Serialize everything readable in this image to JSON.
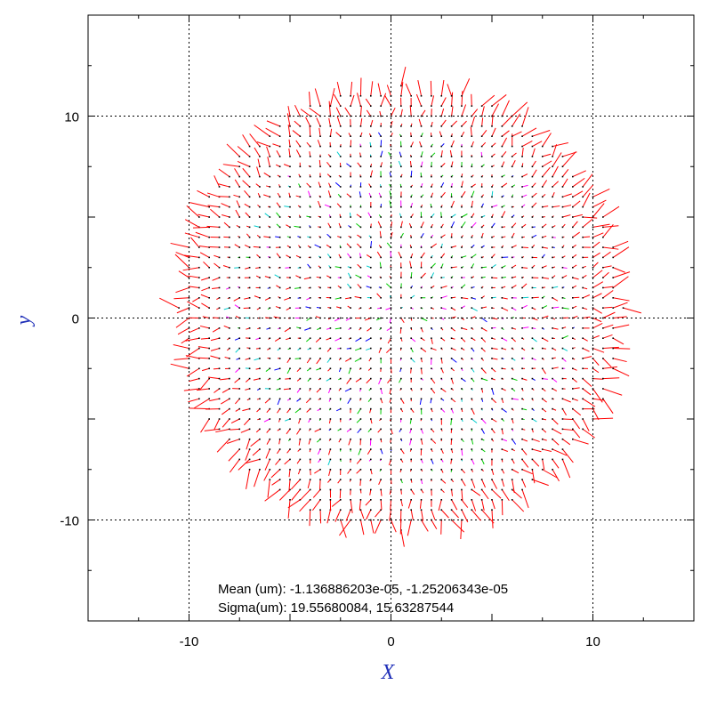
{
  "chart_data": {
    "type": "vector-field",
    "xlabel": "X",
    "ylabel": "y",
    "xlim": [
      -15,
      15
    ],
    "ylim": [
      -15,
      15
    ],
    "grid": true,
    "grid_values": [
      -10,
      0,
      10
    ],
    "x_ticks": [
      {
        "value": -10,
        "label": "-10"
      },
      {
        "value": 0,
        "label": "0"
      },
      {
        "value": 10,
        "label": "10"
      }
    ],
    "y_ticks": [
      {
        "value": 10,
        "label": "10"
      },
      {
        "value": 0,
        "label": "0"
      },
      {
        "value": -10,
        "label": "-10"
      }
    ],
    "minor_ticks": [
      -15,
      -12.5,
      -10,
      -7.5,
      -5,
      -2.5,
      0,
      2.5,
      5,
      7.5,
      10,
      12.5,
      15
    ],
    "field": {
      "extent_x": [
        -10.5,
        11.5
      ],
      "extent_y": [
        -10.5,
        11.5
      ],
      "spacing": 0.5,
      "description_colors": [
        "#ff0000",
        "#00cc00",
        "#0000ff",
        "#ff00ff",
        "#00cccc"
      ]
    },
    "annotations": [
      {
        "name": "mean",
        "text": "Mean (um): -1.136886203e-05, -1.25206343e-05"
      },
      {
        "name": "sigma",
        "text": "Sigma(um): 19.55680084, 15.63287544"
      }
    ],
    "colors": {
      "axis_title": "#1f2fb8",
      "frame": "#000000",
      "grid": "#000000"
    }
  }
}
